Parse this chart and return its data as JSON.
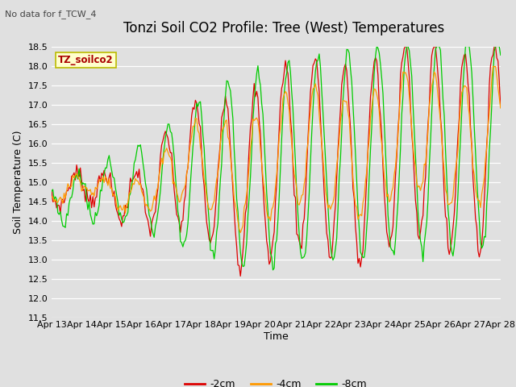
{
  "title": "Tonzi Soil CO2 Profile: Tree (West) Temperatures",
  "subtitle": "No data for f_TCW_4",
  "xlabel": "Time",
  "ylabel": "Soil Temperature (C)",
  "ylim": [
    11.5,
    18.5
  ],
  "yticks": [
    11.5,
    12.0,
    12.5,
    13.0,
    13.5,
    14.0,
    14.5,
    15.0,
    15.5,
    16.0,
    16.5,
    17.0,
    17.5,
    18.0,
    18.5
  ],
  "xtick_labels": [
    "Apr 13",
    "Apr 14",
    "Apr 15",
    "Apr 16",
    "Apr 17",
    "Apr 18",
    "Apr 19",
    "Apr 20",
    "Apr 21",
    "Apr 22",
    "Apr 23",
    "Apr 24",
    "Apr 25",
    "Apr 26",
    "Apr 27",
    "Apr 28"
  ],
  "line_2cm_color": "#dd0000",
  "line_4cm_color": "#ff9900",
  "line_8cm_color": "#00cc00",
  "legend_label_2cm": "-2cm",
  "legend_label_4cm": "-4cm",
  "legend_label_8cm": "-8cm",
  "legend_box_color": "#ffffcc",
  "legend_box_label": "TZ_soilco2",
  "background_color": "#e0e0e0",
  "plot_bg_color": "#e0e0e0",
  "grid_color": "#ffffff",
  "title_fontsize": 12,
  "axis_label_fontsize": 9,
  "tick_fontsize": 8
}
